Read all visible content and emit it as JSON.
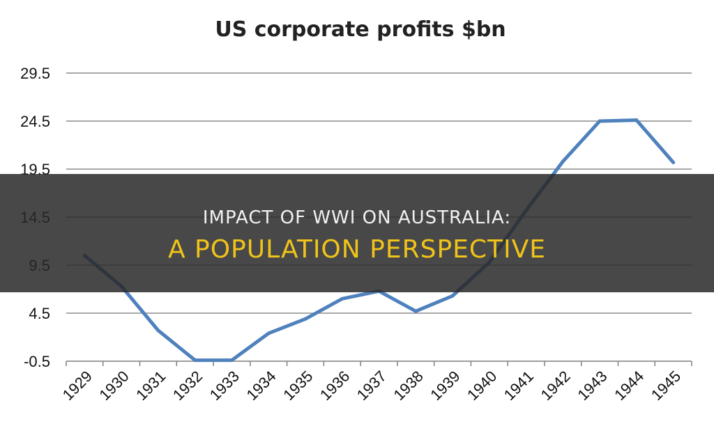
{
  "chart_data": {
    "type": "line",
    "title": "US corporate profits $bn",
    "categories": [
      "1929",
      "1930",
      "1931",
      "1932",
      "1933",
      "1934",
      "1935",
      "1936",
      "1937",
      "1938",
      "1939",
      "1940",
      "1941",
      "1942",
      "1943",
      "1944",
      "1945"
    ],
    "series": [
      {
        "values": [
          10.5,
          7.3,
          2.7,
          -0.4,
          -0.4,
          2.4,
          3.9,
          6.0,
          6.8,
          4.7,
          6.3,
          9.8,
          15.2,
          20.3,
          24.5,
          24.6,
          20.2
        ]
      }
    ],
    "y_ticks": [
      "29.5",
      "24.5",
      "19.5",
      "14.5",
      "9.5",
      "4.5",
      "-0.5"
    ],
    "ylim": [
      -0.5,
      29.5
    ],
    "grid": true,
    "line_color": "#4f81bd"
  },
  "overlay": {
    "line1": "Impact Of Wwi On Australia:",
    "line2": "A Population Perspective",
    "line2_color": "#f0c419"
  }
}
